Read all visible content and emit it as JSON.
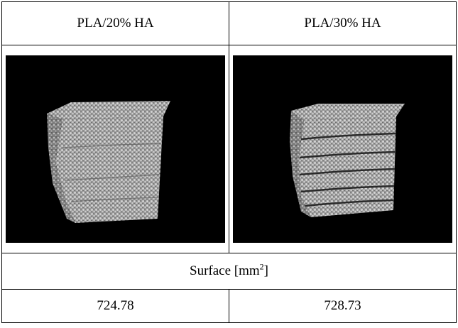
{
  "table": {
    "headers": [
      "PLA/20% HA",
      "PLA/30% HA"
    ],
    "images": [
      {
        "alt": "3D micro-CT rendering of PLA/20% HA porous scaffold cube"
      },
      {
        "alt": "3D micro-CT rendering of PLA/30% HA layered porous scaffold"
      }
    ],
    "measure_label": "Surface [mm",
    "measure_unit_sup": "2",
    "measure_label_end": "]",
    "values": [
      "724.78",
      "728.73"
    ]
  },
  "colors": {
    "panel_background": "#000000",
    "scaffold": "#b8b8b8"
  }
}
